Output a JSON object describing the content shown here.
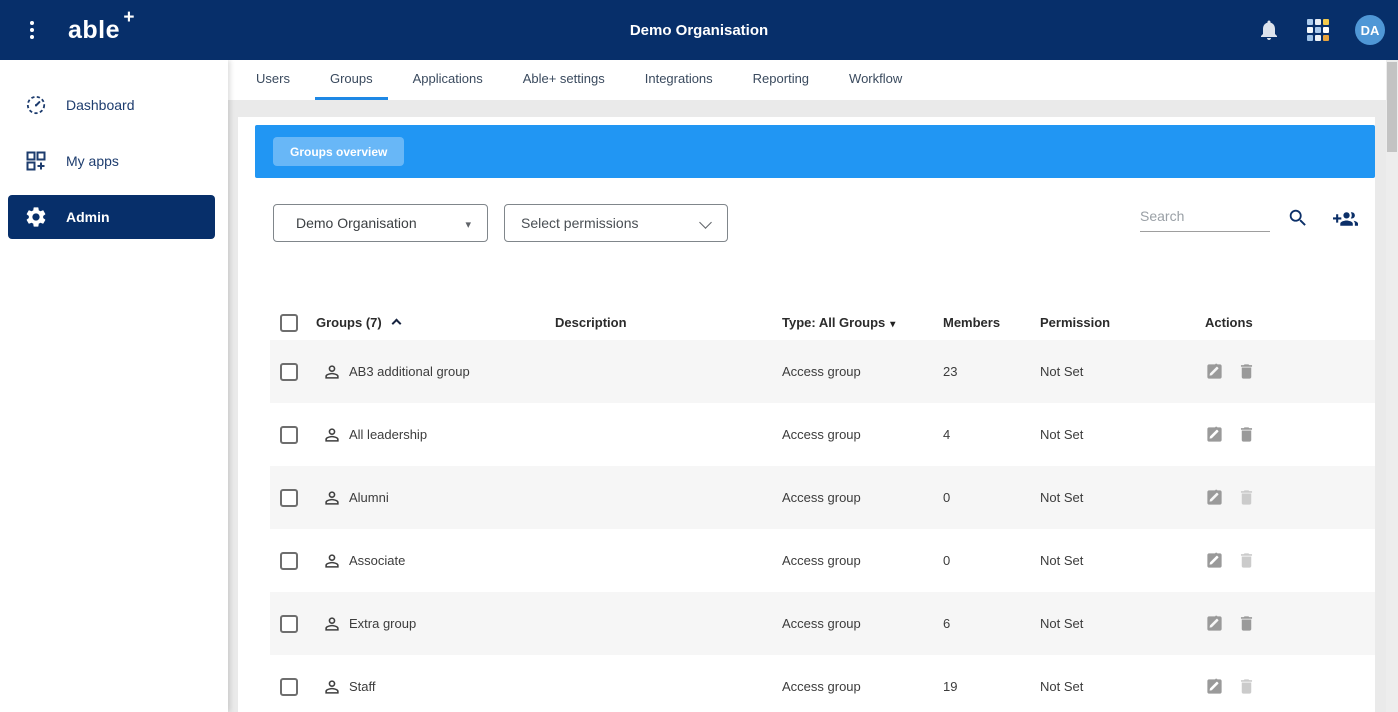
{
  "colors": {
    "navbar_bg": "#072f6a",
    "banner_blue": "#2196f3",
    "tab_underline": "#1e88e5",
    "avatar_bg": "#4f97d6",
    "icon_gray": "#9a9a9a",
    "icon_disabled": "#cbcbcb",
    "row_stripe": "#f6f6f6",
    "apps_grid_cells": [
      "#aecdee",
      "#e9eef5",
      "#f2c94c",
      "#f7fafc",
      "#a9c9ec",
      "#fdfdfd",
      "#9fc3e8",
      "#eef2f6",
      "#e8a33d"
    ]
  },
  "navbar": {
    "logo_text": "able",
    "logo_plus": "+",
    "title": "Demo Organisation",
    "avatar_initials": "DA"
  },
  "sidebar": {
    "items": [
      {
        "label": "Dashboard",
        "icon": "dashboard-gauge-icon"
      },
      {
        "label": "My apps",
        "icon": "my-apps-icon"
      },
      {
        "label": "Admin",
        "icon": "gear-icon"
      }
    ]
  },
  "tabs": {
    "items": [
      {
        "label": "Users"
      },
      {
        "label": "Groups"
      },
      {
        "label": "Applications"
      },
      {
        "label": "Able+ settings"
      },
      {
        "label": "Integrations"
      },
      {
        "label": "Reporting"
      },
      {
        "label": "Workflow"
      }
    ]
  },
  "banner": {
    "overview_button_label": "Groups overview"
  },
  "filters": {
    "organisation_selected": "Demo Organisation",
    "permissions_placeholder": "Select permissions",
    "search_placeholder": "Search"
  },
  "table": {
    "headers": {
      "groups": "Groups (7)",
      "description": "Description",
      "type": "Type: All Groups",
      "members": "Members",
      "permission": "Permission",
      "actions": "Actions"
    },
    "rows": [
      {
        "name": "AB3 additional group",
        "description": "",
        "type": "Access group",
        "members": "23",
        "permission": "Not Set",
        "delete_enabled": true
      },
      {
        "name": "All leadership",
        "description": "",
        "type": "Access group",
        "members": "4",
        "permission": "Not Set",
        "delete_enabled": true
      },
      {
        "name": "Alumni",
        "description": "",
        "type": "Access group",
        "members": "0",
        "permission": "Not Set",
        "delete_enabled": false
      },
      {
        "name": "Associate",
        "description": "",
        "type": "Access group",
        "members": "0",
        "permission": "Not Set",
        "delete_enabled": false
      },
      {
        "name": "Extra group",
        "description": "",
        "type": "Access group",
        "members": "6",
        "permission": "Not Set",
        "delete_enabled": true
      },
      {
        "name": "Staff",
        "description": "",
        "type": "Access group",
        "members": "19",
        "permission": "Not Set",
        "delete_enabled": false
      }
    ]
  }
}
